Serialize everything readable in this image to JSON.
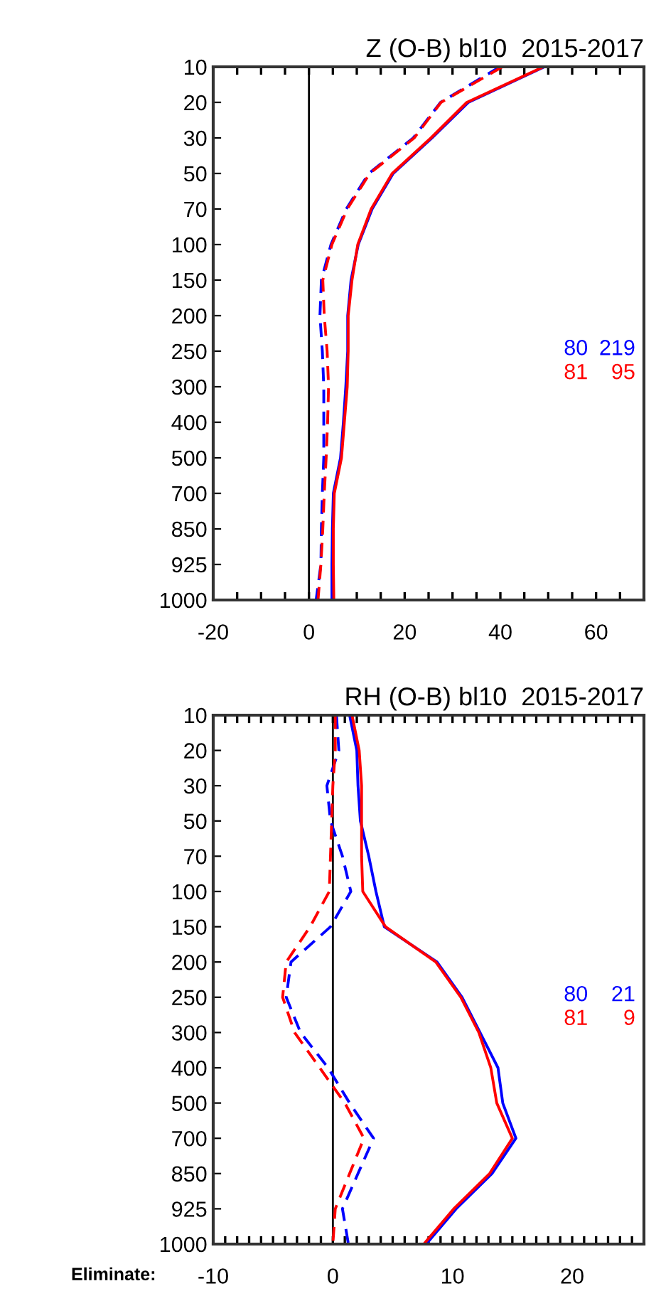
{
  "chart_data": [
    {
      "type": "line",
      "orientation": "horizontal",
      "title": "Z (O-B) bl10  2015-2017",
      "categories": [
        "10",
        "20",
        "30",
        "50",
        "70",
        "100",
        "150",
        "200",
        "250",
        "300",
        "400",
        "500",
        "700",
        "850",
        "925",
        "1000"
      ],
      "series": [
        {
          "color": "#0000ff",
          "line_style": "solid",
          "values": [
            49.2,
            33.3,
            25.7,
            17.6,
            13.2,
            10.3,
            8.8,
            8.1,
            8.1,
            7.7,
            7.2,
            6.6,
            5.1,
            4.9,
            4.8,
            4.8
          ]
        },
        {
          "color": "#ff0000",
          "line_style": "solid",
          "values": [
            49.0,
            33.0,
            25.5,
            17.4,
            13.0,
            10.2,
            9.0,
            8.2,
            8.2,
            8.0,
            7.4,
            6.8,
            5.3,
            5.1,
            5.1,
            5.2
          ]
        },
        {
          "color": "#0000ff",
          "line_style": "dashed",
          "values": [
            39.9,
            27.5,
            21.8,
            12.5,
            7.8,
            4.6,
            2.6,
            2.3,
            2.8,
            3.1,
            3.1,
            3.1,
            2.8,
            2.6,
            2.5,
            1.5
          ]
        },
        {
          "color": "#ff0000",
          "line_style": "dashed",
          "values": [
            40.4,
            27.6,
            22.0,
            12.7,
            8.0,
            4.8,
            2.9,
            3.2,
            3.8,
            4.1,
            3.9,
            3.6,
            3.2,
            2.9,
            2.5,
            1.9
          ]
        }
      ],
      "xlim": [
        -20,
        70
      ],
      "xticks": [
        -20,
        {
          "value": -15,
          "label": null
        },
        {
          "value": -10,
          "label": null
        },
        {
          "value": -5,
          "label": null
        },
        0,
        {
          "value": 5,
          "label": null
        },
        {
          "value": 10,
          "label": null
        },
        {
          "value": 15,
          "label": null
        },
        20,
        {
          "value": 25,
          "label": null
        },
        {
          "value": 30,
          "label": null
        },
        {
          "value": 35,
          "label": null
        },
        40,
        {
          "value": 45,
          "label": null
        },
        {
          "value": 50,
          "label": null
        },
        {
          "value": 55,
          "label": null
        },
        60,
        {
          "value": 65,
          "label": null
        }
      ],
      "ref_lines": [
        {
          "axis": "x",
          "value": 0,
          "color": "#000000"
        }
      ],
      "annotations": [
        "80",
        "219",
        "81",
        "95"
      ]
    },
    {
      "type": "line",
      "orientation": "horizontal",
      "title": "RH (O-B) bl10  2015-2017",
      "categories": [
        "10",
        "20",
        "30",
        "50",
        "70",
        "100",
        "150",
        "200",
        "250",
        "300",
        "400",
        "500",
        "700",
        "850",
        "925",
        "1000"
      ],
      "series": [
        {
          "color": "#0000ff",
          "line_style": "solid",
          "values": [
            1.4,
            2.0,
            2.1,
            2.3,
            3.0,
            3.6,
            4.3,
            8.7,
            10.8,
            12.3,
            13.8,
            14.2,
            15.3,
            13.3,
            10.3,
            7.8
          ]
        },
        {
          "color": "#ff0000",
          "line_style": "solid",
          "values": [
            1.6,
            2.2,
            2.4,
            2.4,
            2.4,
            2.5,
            4.4,
            8.6,
            10.7,
            12.2,
            13.2,
            13.7,
            15.0,
            13.1,
            10.1,
            7.6
          ]
        },
        {
          "color": "#0000ff",
          "line_style": "dashed",
          "values": [
            0.3,
            0.5,
            -0.5,
            -0.2,
            0.8,
            1.5,
            -0.2,
            -3.5,
            -3.9,
            -2.7,
            -0.4,
            1.4,
            3.4,
            2.1,
            0.8,
            1.3
          ]
        },
        {
          "color": "#ff0000",
          "line_style": "dashed",
          "values": [
            0.2,
            0.2,
            0.0,
            -0.1,
            -0.2,
            -0.3,
            -1.9,
            -3.9,
            -4.2,
            -3.2,
            -1.1,
            1.0,
            2.6,
            1.4,
            0.2,
            0.0
          ]
        }
      ],
      "xlim": [
        -10,
        26
      ],
      "xticks": [
        -10,
        {
          "value": -9,
          "label": null
        },
        {
          "value": -8,
          "label": null
        },
        {
          "value": -7,
          "label": null
        },
        {
          "value": -6,
          "label": null
        },
        {
          "value": -5,
          "label": null
        },
        {
          "value": -4,
          "label": null
        },
        {
          "value": -3,
          "label": null
        },
        {
          "value": -2,
          "label": null
        },
        {
          "value": -1,
          "label": null
        },
        0,
        {
          "value": 1,
          "label": null
        },
        {
          "value": 2,
          "label": null
        },
        {
          "value": 3,
          "label": null
        },
        {
          "value": 4,
          "label": null
        },
        {
          "value": 5,
          "label": null
        },
        {
          "value": 6,
          "label": null
        },
        {
          "value": 7,
          "label": null
        },
        {
          "value": 8,
          "label": null
        },
        {
          "value": 9,
          "label": null
        },
        10,
        {
          "value": 11,
          "label": null
        },
        {
          "value": 12,
          "label": null
        },
        {
          "value": 13,
          "label": null
        },
        {
          "value": 14,
          "label": null
        },
        {
          "value": 15,
          "label": null
        },
        {
          "value": 16,
          "label": null
        },
        {
          "value": 17,
          "label": null
        },
        {
          "value": 18,
          "label": null
        },
        {
          "value": 19,
          "label": null
        },
        20,
        {
          "value": 21,
          "label": null
        },
        {
          "value": 22,
          "label": null
        },
        {
          "value": 23,
          "label": null
        },
        {
          "value": 24,
          "label": null
        },
        {
          "value": 25,
          "label": null
        }
      ],
      "ref_lines": [
        {
          "axis": "x",
          "value": 0,
          "color": "#000000"
        }
      ],
      "annotations": [
        "80",
        "21",
        "81",
        "9",
        "Eliminate:"
      ]
    }
  ]
}
